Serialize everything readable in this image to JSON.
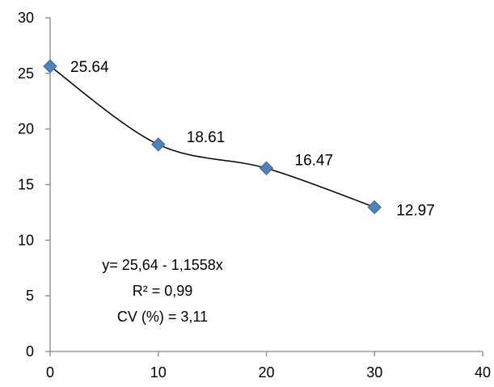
{
  "chart_data": {
    "type": "scatter",
    "x": [
      0,
      10,
      20,
      30
    ],
    "y": [
      25.64,
      18.61,
      16.47,
      12.97
    ],
    "data_labels": [
      "25.64",
      "18.61",
      "16.47",
      "12.97"
    ],
    "xlim": [
      0,
      40
    ],
    "ylim": [
      0,
      30
    ],
    "x_ticks": [
      0,
      10,
      20,
      30,
      40
    ],
    "y_ticks": [
      0,
      5,
      10,
      15,
      20,
      25,
      30
    ],
    "x_tick_labels": [
      "0",
      "10",
      "20",
      "30",
      "40"
    ],
    "y_tick_labels": [
      "0",
      "5",
      "10",
      "15",
      "20",
      "25",
      "30"
    ],
    "marker": "diamond",
    "marker_color": "#4F81BD",
    "trendline": "smooth curve through points",
    "grid": false,
    "annotations": [
      "y= 25,64 - 1,1558x",
      "R² = 0,99",
      "CV (%) = 3,11"
    ],
    "title": "",
    "xlabel": "",
    "ylabel": ""
  }
}
